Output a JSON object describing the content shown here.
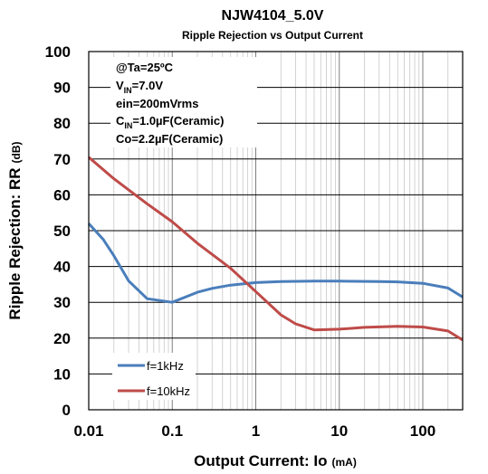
{
  "chart_data": {
    "type": "line",
    "title": "NJW4104_5.0V",
    "subtitle": "Ripple Rejection vs Output Current",
    "xlabel": "Output Current: Io",
    "xlabel_unit": "(mA)",
    "ylabel": "Ripple Rejection: RR",
    "ylabel_unit": "(dB)",
    "x_scale": "log",
    "xlim": [
      0.01,
      300
    ],
    "ylim": [
      0,
      100
    ],
    "x_ticks": [
      "0.01",
      "0.1",
      "1",
      "10",
      "100"
    ],
    "y_ticks": [
      "0",
      "10",
      "20",
      "30",
      "40",
      "50",
      "60",
      "70",
      "80",
      "90",
      "100"
    ],
    "grid": true,
    "legend_position": "bottom-left",
    "annotations": [
      {
        "main": "@Ta=25ºC"
      },
      {
        "main": "V",
        "sub": "IN",
        "rest": "=7.0V"
      },
      {
        "main": "ein=200mVrms"
      },
      {
        "main": "C",
        "sub": "IN",
        "rest": "=1.0µF(Ceramic)"
      },
      {
        "main": "Co=2.2µF(Ceramic)"
      }
    ],
    "series": [
      {
        "name": "f=1kHz",
        "color": "#4a7ebb",
        "x": [
          0.01,
          0.015,
          0.02,
          0.03,
          0.05,
          0.1,
          0.2,
          0.3,
          0.5,
          1,
          2,
          5,
          10,
          30,
          50,
          100,
          200,
          300
        ],
        "y": [
          52,
          47.5,
          43,
          36,
          31,
          30,
          32.8,
          33.9,
          34.8,
          35.5,
          35.8,
          35.9,
          35.9,
          35.8,
          35.7,
          35.3,
          34,
          31.5
        ]
      },
      {
        "name": "f=10kHz",
        "color": "#be4b48",
        "x": [
          0.01,
          0.02,
          0.05,
          0.1,
          0.2,
          0.5,
          1,
          2,
          3,
          5,
          10,
          20,
          50,
          100,
          200,
          300
        ],
        "y": [
          70.5,
          64.5,
          57.5,
          52.5,
          46.5,
          39.5,
          33,
          26.5,
          24,
          22.3,
          22.5,
          23,
          23.3,
          23.1,
          22,
          19.5
        ]
      }
    ]
  }
}
